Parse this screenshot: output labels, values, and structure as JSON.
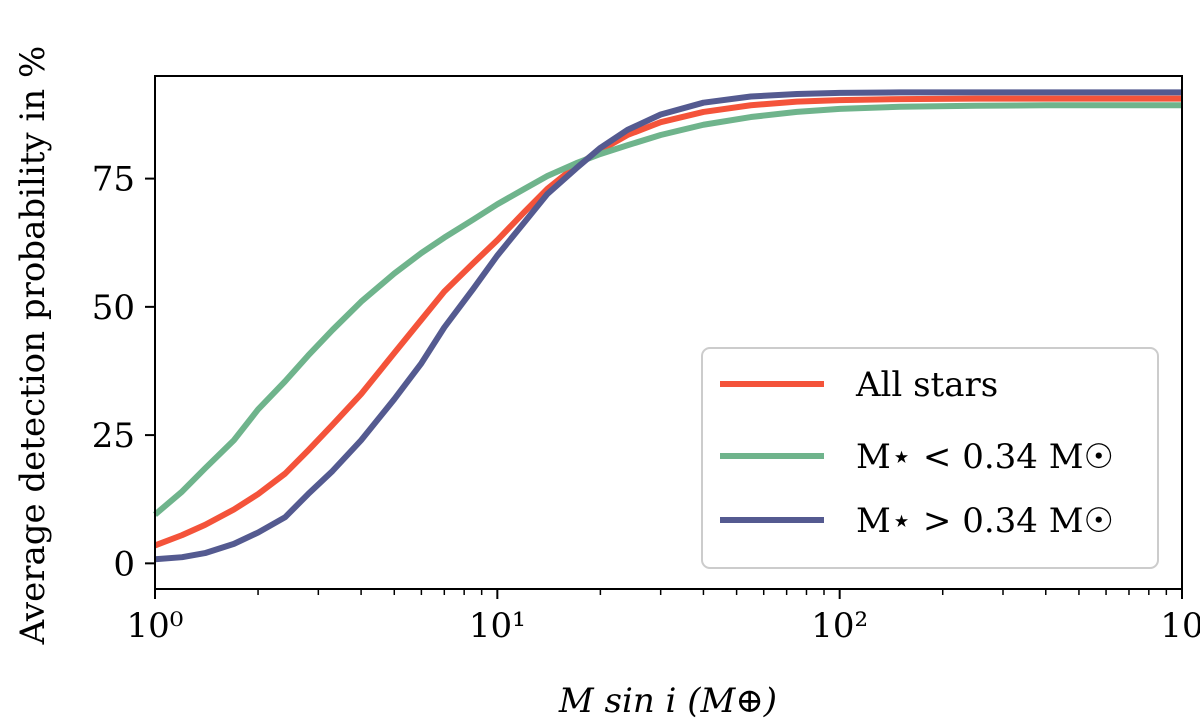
{
  "chart_data": {
    "type": "line",
    "title": "",
    "xlabel": "M sin i (M⊕)",
    "ylabel": "Average detection probability in %",
    "xscale": "log",
    "xlim": [
      1,
      1000
    ],
    "ylim": [
      -5,
      95
    ],
    "x_tick_labels": [
      "10⁰",
      "10¹",
      "10²",
      "10"
    ],
    "y_ticks": [
      0,
      25,
      50,
      75
    ],
    "y_tick_labels": [
      "0",
      "25",
      "50",
      "75"
    ],
    "grid": false,
    "legend_position": "lower-right",
    "x": [
      1,
      1.2,
      1.4,
      1.7,
      2,
      2.4,
      2.8,
      3.3,
      4,
      5,
      6,
      7,
      8.5,
      10,
      12,
      14,
      17,
      20,
      24,
      30,
      40,
      55,
      75,
      100,
      150,
      250,
      400,
      700,
      1000
    ],
    "series": [
      {
        "name": "All stars",
        "legend_label": "All stars",
        "color": "#f4533a",
        "values": [
          3.5,
          5.5,
          7.5,
          10.5,
          13.5,
          17.5,
          22,
          27,
          33,
          41,
          47.5,
          53,
          58.5,
          63,
          68.5,
          73,
          77.5,
          80.5,
          83.5,
          86,
          88,
          89.3,
          90.0,
          90.3,
          90.5,
          90.6,
          90.6,
          90.6,
          90.6
        ]
      },
      {
        "name": "M_star < 0.34 M_sun",
        "legend_label": "M⋆ < 0.34 M☉",
        "color": "#6fb48c",
        "values": [
          9.5,
          14,
          18.5,
          24,
          30,
          35.5,
          40.5,
          45.5,
          51,
          56.5,
          60.5,
          63.5,
          67,
          70,
          73,
          75.5,
          78,
          79.8,
          81.5,
          83.5,
          85.5,
          87,
          88,
          88.6,
          89.0,
          89.2,
          89.3,
          89.3,
          89.3
        ]
      },
      {
        "name": "M_star > 0.34 M_sun",
        "legend_label": "M⋆ > 0.34 M☉",
        "color": "#545a90",
        "values": [
          0.8,
          1.2,
          2,
          3.8,
          6,
          9,
          13.5,
          18,
          24,
          32,
          39,
          46,
          53.5,
          60,
          66.5,
          72,
          77,
          81,
          84.5,
          87.5,
          89.8,
          91.0,
          91.5,
          91.7,
          91.8,
          91.8,
          91.8,
          91.8,
          91.8
        ]
      }
    ]
  }
}
